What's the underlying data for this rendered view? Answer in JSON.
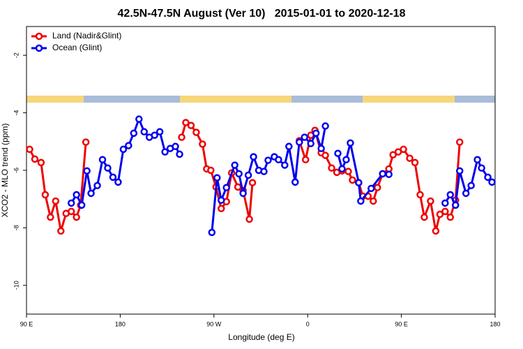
{
  "chart_data": {
    "type": "line",
    "title": "42.5N-47.5N August (Ver 10)   2015-01-01 to 2020-12-18",
    "xlabel": "Longitude (deg E)",
    "ylabel": "XCO2 - MLO trend (ppm)",
    "xlim": [
      90,
      540
    ],
    "xticks": [
      {
        "value": 90,
        "label": "90 E"
      },
      {
        "value": 180,
        "label": "180"
      },
      {
        "value": 270,
        "label": "90 W"
      },
      {
        "value": 360,
        "label": "0"
      },
      {
        "value": 450,
        "label": "90 E"
      },
      {
        "value": 540,
        "label": "180"
      }
    ],
    "ylim": [
      -11,
      -1
    ],
    "yticks": [
      -2,
      -4,
      -6,
      -8,
      -10
    ],
    "legend": "top-left",
    "series": [
      {
        "name": "Land (Nadir&Glint)",
        "color": "#ee0000",
        "x": [
          93,
          98,
          104,
          108,
          113,
          118,
          123,
          128,
          133,
          138,
          142,
          147,
          null,
          239,
          243,
          248,
          253,
          259,
          263,
          267,
          272,
          277,
          282,
          287,
          293,
          298,
          304,
          307,
          null,
          352,
          358,
          363,
          367,
          373,
          377,
          383,
          388,
          393,
          399,
          403,
          409,
          413,
          418,
          423,
          427,
          432,
          438,
          442,
          447,
          452,
          458,
          463,
          468,
          472,
          478,
          483,
          487,
          492,
          497,
          502,
          506
        ],
        "values": [
          -5.27,
          -5.61,
          -5.73,
          -6.85,
          -7.63,
          -7.07,
          -8.11,
          -7.5,
          -7.43,
          -7.63,
          -7.21,
          -5.02,
          null,
          -4.85,
          -4.34,
          -4.44,
          -4.68,
          -5.09,
          -5.95,
          -6.0,
          -6.58,
          -7.33,
          -7.09,
          -6.09,
          -6.58,
          -6.7,
          -7.7,
          -6.43,
          null,
          -4.97,
          -5.63,
          -4.78,
          -4.61,
          -5.39,
          -5.48,
          -5.92,
          -6.07,
          -6.02,
          -6.04,
          -6.34,
          -6.43,
          -6.9,
          -6.9,
          -7.07,
          -6.6,
          -6.12,
          -5.95,
          -5.46,
          -5.36,
          -5.27,
          -5.58,
          -5.73,
          -6.85,
          -7.63,
          -7.07,
          -8.11,
          -7.53,
          -7.43,
          -7.63,
          -7.04,
          -5.02
        ]
      },
      {
        "name": "Ocean (Glint)",
        "color": "#0000ee",
        "x": [
          133,
          138,
          143,
          148,
          152,
          158,
          163,
          168,
          173,
          178,
          183,
          188,
          193,
          198,
          203,
          208,
          213,
          218,
          223,
          228,
          233,
          237,
          null,
          268,
          273,
          277,
          282,
          290,
          294,
          298,
          303,
          308,
          313,
          318,
          322,
          328,
          332,
          338,
          342,
          348,
          352,
          357,
          363,
          368,
          373,
          377,
          null,
          389,
          393,
          397,
          401,
          409,
          411,
          421,
          432,
          438,
          null,
          492,
          497,
          502,
          506,
          512,
          517,
          523,
          527,
          533,
          537
        ],
        "values": [
          -7.14,
          -6.85,
          -7.21,
          -6.02,
          -6.8,
          -6.53,
          -5.63,
          -5.92,
          -6.24,
          -6.41,
          -5.27,
          -5.14,
          -4.71,
          -4.22,
          -4.66,
          -4.85,
          -4.78,
          -4.66,
          -5.36,
          -5.24,
          -5.17,
          -5.44,
          null,
          -8.16,
          -6.26,
          -7.04,
          -6.6,
          -5.82,
          -6.12,
          -6.8,
          -6.17,
          -5.53,
          -6.0,
          -6.04,
          -5.65,
          -5.53,
          -5.63,
          -5.82,
          -5.17,
          -6.41,
          -5.02,
          -4.85,
          -5.07,
          -4.71,
          -5.24,
          -4.46,
          null,
          -5.41,
          -5.95,
          -5.63,
          -5.05,
          -6.43,
          -7.07,
          -6.63,
          -6.12,
          -6.14,
          null,
          -7.14,
          -6.85,
          -7.21,
          -6.02,
          -6.8,
          -6.53,
          -5.63,
          -5.92,
          -6.24,
          -6.41
        ]
      }
    ]
  }
}
